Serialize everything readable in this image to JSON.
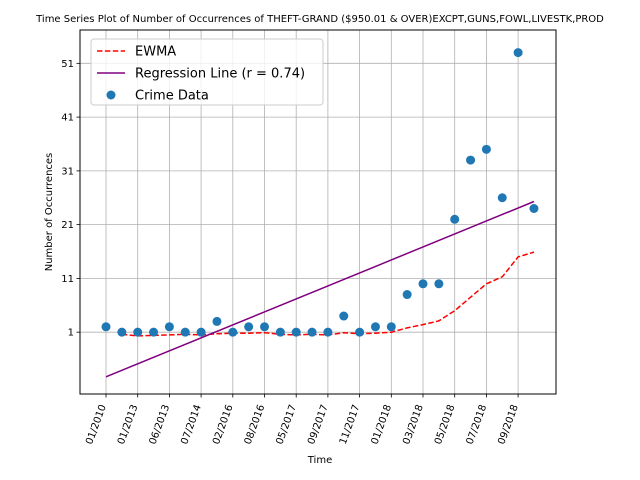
{
  "chart_data": {
    "type": "scatter",
    "title": "Time Series Plot of Number of Occurrences of THEFT-GRAND ($950.01 & OVER)EXCPT,GUNS,FOWL,LIVESTK,PROD",
    "xlabel": "Time",
    "ylabel": "Number of Occurrences",
    "categories": [
      "01/2010",
      "",
      "01/2013",
      "",
      "06/2013",
      "",
      "07/2014",
      "",
      "02/2016",
      "",
      "08/2016",
      "",
      "05/2017",
      "",
      "09/2017",
      "",
      "11/2017",
      "",
      "01/2018",
      "",
      "03/2018",
      "",
      "05/2018",
      "",
      "07/2018",
      "",
      "09/2018",
      ""
    ],
    "ylim": [
      -10.5,
      57.2
    ],
    "yticks": [
      1,
      11,
      21,
      31,
      41,
      51
    ],
    "grid": true,
    "legend_position": "top-left",
    "series": [
      {
        "name": "EWMA",
        "kind": "line",
        "style": "dashed",
        "color": "#ff0000",
        "values": [
          null,
          0.6,
          0.3,
          0.4,
          0.5,
          0.6,
          0.5,
          0.7,
          0.8,
          0.8,
          0.9,
          0.6,
          0.5,
          0.6,
          0.5,
          0.9,
          0.7,
          0.8,
          1.0,
          1.8,
          2.4,
          3.1,
          5.0,
          7.5,
          10.0,
          11.3,
          15.0,
          15.9
        ]
      },
      {
        "name": "Regression Line (r = 0.74)",
        "kind": "line",
        "style": "solid",
        "color": "#800080",
        "values": [
          -7.3,
          null,
          null,
          null,
          null,
          null,
          null,
          null,
          null,
          null,
          null,
          null,
          null,
          null,
          null,
          null,
          null,
          null,
          null,
          null,
          null,
          null,
          null,
          null,
          null,
          null,
          null,
          25.3
        ]
      },
      {
        "name": "Crime Data",
        "kind": "scatter",
        "color": "#1f77b4",
        "values": [
          2,
          1,
          1,
          1,
          2,
          1,
          1,
          3,
          1,
          2,
          2,
          1,
          1,
          1,
          1,
          4,
          1,
          2,
          2,
          8,
          10,
          10,
          22,
          33,
          35,
          26,
          53,
          24
        ]
      }
    ]
  }
}
